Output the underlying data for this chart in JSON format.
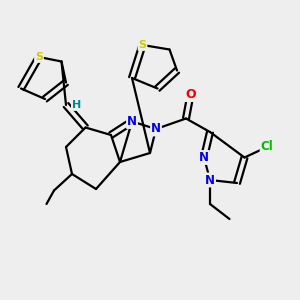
{
  "bg_color": "#eeeeee",
  "bond_color": "#000000",
  "bond_width": 1.6,
  "atom_colors": {
    "S": "#cccc00",
    "N": "#0000ee",
    "O": "#ee0000",
    "Cl": "#00bb00",
    "H": "#008888",
    "C": "#000000"
  },
  "font_size_atoms": 8.5,
  "title": ""
}
